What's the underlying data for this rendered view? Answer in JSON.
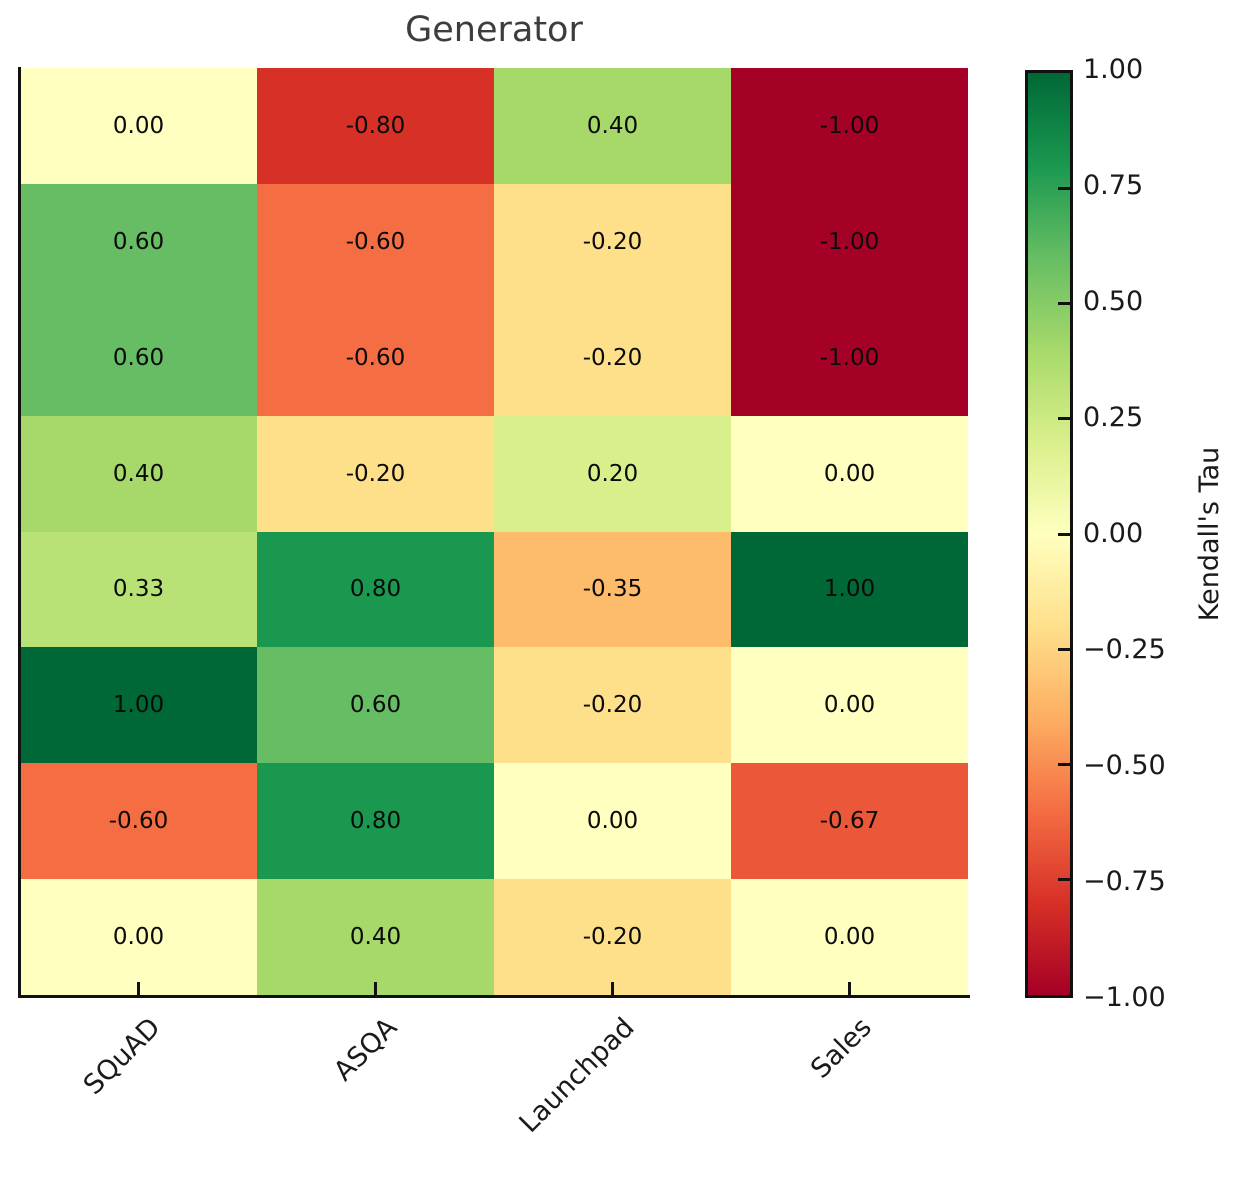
{
  "title": "Generator",
  "chart_data": {
    "type": "heatmap",
    "title": "Generator",
    "colorbar_label": "Kendall's Tau",
    "x_categories": [
      "SQuAD",
      "ASQA",
      "Launchpad",
      "Sales"
    ],
    "y_categories": [],
    "values": [
      [
        0.0,
        -0.8,
        0.4,
        -1.0
      ],
      [
        0.6,
        -0.6,
        -0.2,
        -1.0
      ],
      [
        0.6,
        -0.6,
        -0.2,
        -1.0
      ],
      [
        0.4,
        -0.2,
        0.2,
        0.0
      ],
      [
        0.33,
        0.8,
        -0.35,
        1.0
      ],
      [
        1.0,
        0.6,
        -0.2,
        0.0
      ],
      [
        -0.6,
        0.8,
        0.0,
        -0.67
      ],
      [
        0.0,
        0.4,
        -0.2,
        0.0
      ]
    ],
    "cell_labels": [
      [
        "0.00",
        "-0.80",
        "0.40",
        "-1.00"
      ],
      [
        "0.60",
        "-0.60",
        "-0.20",
        "-1.00"
      ],
      [
        "0.60",
        "-0.60",
        "-0.20",
        "-1.00"
      ],
      [
        "0.40",
        "-0.20",
        "0.20",
        "0.00"
      ],
      [
        "0.33",
        "0.80",
        "-0.35",
        "1.00"
      ],
      [
        "1.00",
        "0.60",
        "-0.20",
        "0.00"
      ],
      [
        "-0.60",
        "0.80",
        "0.00",
        "-0.67"
      ],
      [
        "0.00",
        "0.40",
        "-0.20",
        "0.00"
      ]
    ],
    "vmin": -1.0,
    "vmax": 1.0,
    "colormap": {
      "name": "RdYlGn",
      "anchors": [
        "#a50026",
        "#d73027",
        "#f46d43",
        "#fdae61",
        "#fee08b",
        "#ffffbf",
        "#d9ef8b",
        "#a6d96a",
        "#66bd63",
        "#1a9850",
        "#006837"
      ]
    },
    "colorbar_ticks": [
      "1.00",
      "0.75",
      "0.50",
      "0.25",
      "0.00",
      "−0.25",
      "−0.50",
      "−0.75",
      "−1.00"
    ],
    "colorbar_tick_values": [
      1.0,
      0.75,
      0.5,
      0.25,
      0.0,
      -0.25,
      -0.5,
      -0.75,
      -1.0
    ],
    "legend_position": "right-colorbar",
    "grid": false,
    "text_color": "#1a1a1a",
    "title_color": "#3d3d3d",
    "spine_color": "#111111"
  }
}
